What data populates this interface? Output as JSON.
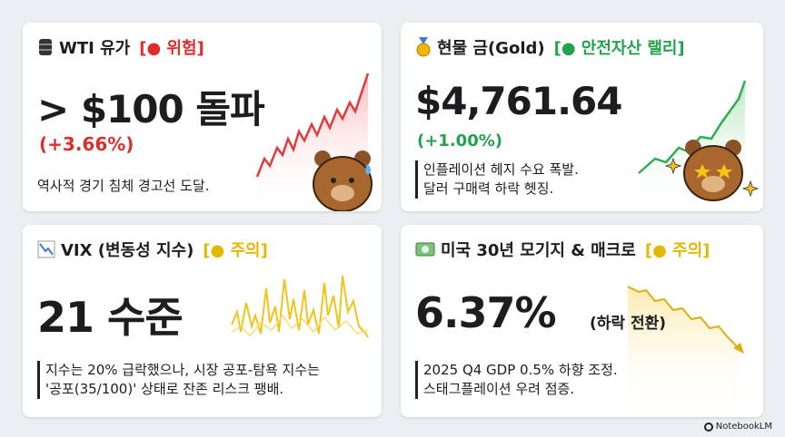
{
  "cards": [
    {
      "title": "WTI 유가",
      "status": "[● 위험]",
      "value": "> $100 돌파",
      "change": "(+3.66%)",
      "description": [
        "역사적 경기 침체 경고선 도달."
      ]
    },
    {
      "title": "현물 금(Gold)",
      "status": "[● 안전자산 랠리]",
      "value": "$4,761.64",
      "change": "(+1.00%)",
      "description": [
        "인플레이션 헤지 수요 폭발.",
        "달러 구매력 하락 헷징."
      ]
    },
    {
      "title": "VIX (변동성 지수)",
      "status": "[● 주의]",
      "value": "21 수준",
      "description": [
        "지수는 20% 급락했으나, 시장 공포-탐욕 지수는",
        "'공포(35/100)' 상태로 잔존 리스크 팽배."
      ]
    },
    {
      "title": "미국 30년 모기지 & 매크로",
      "status": "[● 주의]",
      "value": "6.37%",
      "note": "(하락 전환)",
      "description": [
        "2025 Q4 GDP 0.5% 하향 조정.",
        "스태그플레이션 우려 점증."
      ]
    }
  ],
  "footer": "NotebookLM"
}
